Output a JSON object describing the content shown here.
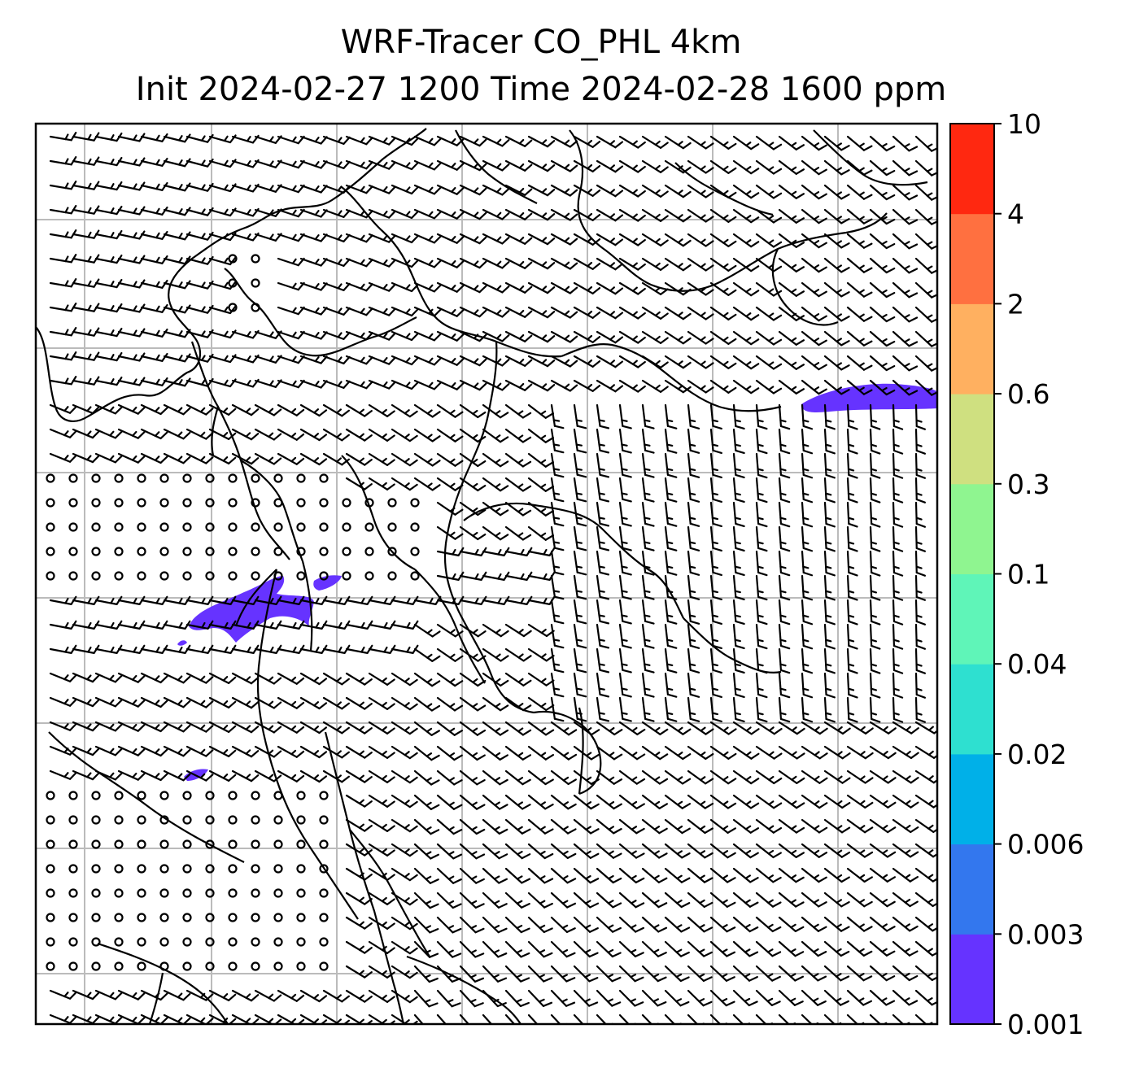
{
  "title": {
    "line1": "WRF-Tracer CO_PHL 4km",
    "line2": "Init 2024-02-27 1200 Time 2024-02-28 1600 ppm"
  },
  "colorbar": {
    "levels": [
      "0.001",
      "0.003",
      "0.006",
      "0.02",
      "0.04",
      "0.1",
      "0.3",
      "0.6",
      "2",
      "4",
      "10"
    ],
    "colors": [
      "#6633ff",
      "#3377ee",
      "#00b0e8",
      "#2ee0d0",
      "#5ff5b8",
      "#8ff590",
      "#cfe080",
      "#ffb060",
      "#ff7040",
      "#ff2810"
    ]
  },
  "map": {
    "grid": "on",
    "barbs_color": "#000000",
    "coastline_color": "#000000",
    "plume_color": "#6633ff"
  }
}
